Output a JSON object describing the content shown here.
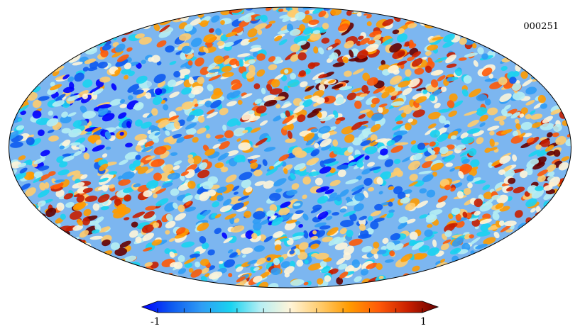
{
  "map": {
    "id_label": "000251",
    "projection": "mollweide",
    "description_colormap": "planck"
  },
  "colorbar": {
    "min_label": "-1",
    "max_label": "1",
    "min_value": -1,
    "max_value": 1,
    "tick_count": 11,
    "colors": [
      "#0000ff",
      "#0d5af0",
      "#2f9cf5",
      "#19d3f0",
      "#b6eef3",
      "#fff5d9",
      "#ffcc6e",
      "#ff9b00",
      "#ff5a08",
      "#c81e00",
      "#650000"
    ]
  }
}
